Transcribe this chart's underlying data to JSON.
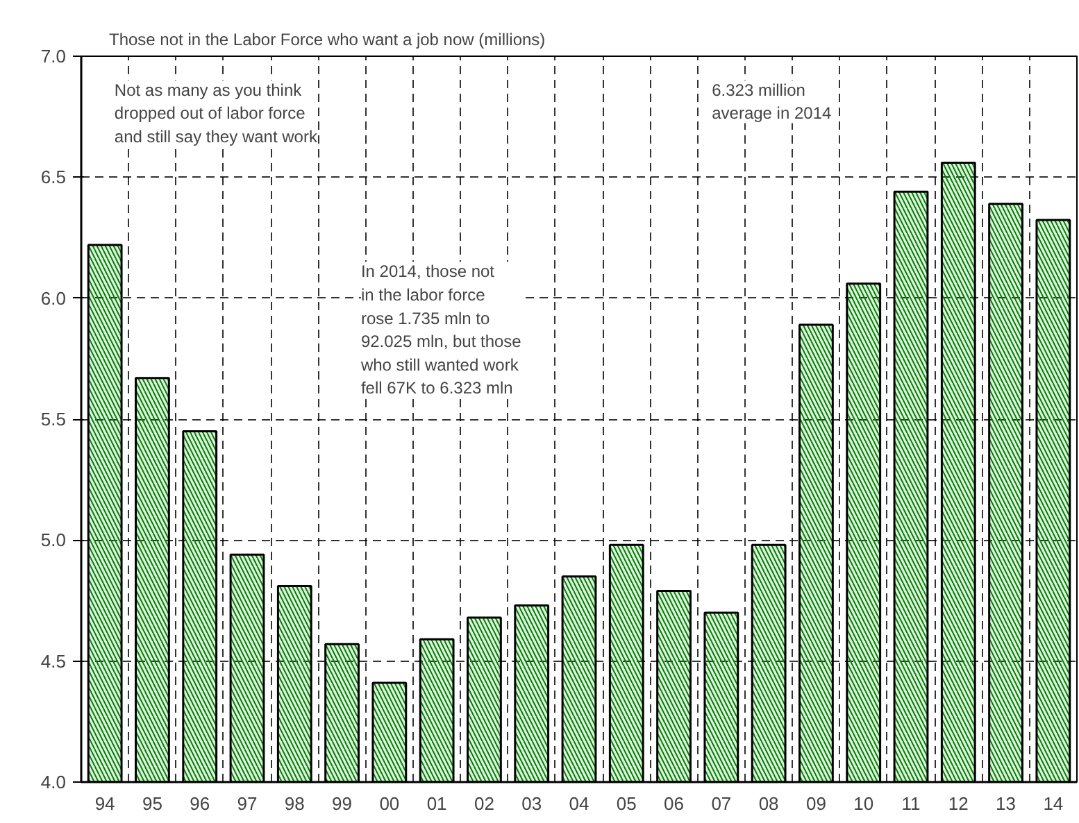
{
  "chart_data": {
    "type": "bar",
    "title": "Those not in the Labor Force who want a job now (millions)",
    "categories": [
      "94",
      "95",
      "96",
      "97",
      "98",
      "99",
      "00",
      "01",
      "02",
      "03",
      "04",
      "05",
      "06",
      "07",
      "08",
      "09",
      "10",
      "11",
      "12",
      "13",
      "14"
    ],
    "values": [
      6.22,
      5.67,
      5.45,
      4.94,
      4.81,
      4.57,
      4.41,
      4.59,
      4.68,
      4.73,
      4.85,
      4.98,
      4.79,
      4.7,
      4.98,
      5.89,
      6.06,
      6.44,
      6.56,
      6.39,
      6.323
    ],
    "color": "#008000",
    "ylim": [
      4.0,
      7.0
    ],
    "yticks": [
      {
        "value": 4.0,
        "label": "4.0"
      },
      {
        "value": 4.5,
        "label": "4.5"
      },
      {
        "value": 5.0,
        "label": "5.0"
      },
      {
        "value": 5.5,
        "label": "5.5"
      },
      {
        "value": 6.0,
        "label": "6.0"
      },
      {
        "value": 6.5,
        "label": "6.5"
      },
      {
        "value": 7.0,
        "label": "7.0"
      }
    ],
    "grid": true,
    "annotations": [
      "Not as many as you think\ndropped out of labor force\nand still say they want work",
      "6.323 million\naverage in 2014",
      "In 2014, those not\nin the labor force\nrose 1.735 mln to\n92.025 mln, but those\nwho still wanted work\nfell 67K to 6.323 mln"
    ]
  }
}
